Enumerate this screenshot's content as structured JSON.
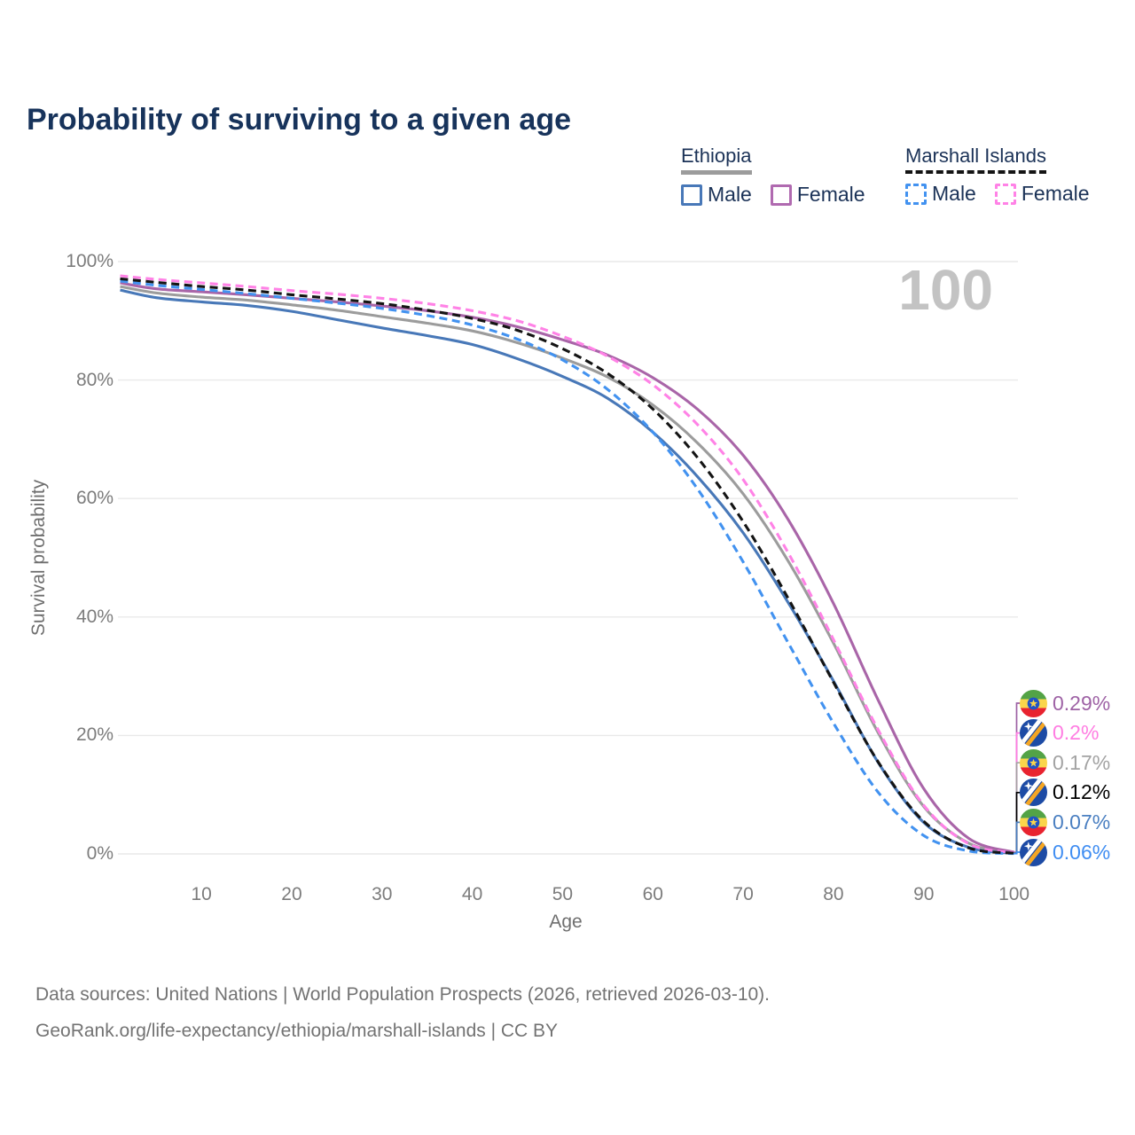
{
  "title": "Probability of surviving to a given age",
  "watermark": "100",
  "legend": {
    "groups": [
      {
        "label": "Ethiopia",
        "underline": "solid",
        "underline_color": "#9c9c9c",
        "items": [
          {
            "label": "Male",
            "color": "#4878b8",
            "dashed": false
          },
          {
            "label": "Female",
            "color": "#b06ab0",
            "dashed": false
          }
        ]
      },
      {
        "label": "Marshall Islands",
        "underline": "dashed",
        "underline_color": "#141414",
        "items": [
          {
            "label": "Male",
            "color": "#4292f0",
            "dashed": true
          },
          {
            "label": "Female",
            "color": "#ff82e6",
            "dashed": true
          }
        ]
      }
    ]
  },
  "chart_data": {
    "type": "line",
    "title": "Probability of surviving to a given age",
    "xlabel": "Age",
    "ylabel": "Survival probability",
    "xlim": [
      1,
      100
    ],
    "ylim": [
      0,
      100
    ],
    "grid": "horizontal-only",
    "legend_position": "top-right",
    "hovered_age": "100",
    "x_ticks": [
      10,
      20,
      30,
      40,
      50,
      60,
      70,
      80,
      90,
      100
    ],
    "y_ticks": [
      {
        "pct": 0,
        "label": "0%"
      },
      {
        "pct": 20,
        "label": "20%"
      },
      {
        "pct": 40,
        "label": "40%"
      },
      {
        "pct": 60,
        "label": "60%"
      },
      {
        "pct": 80,
        "label": "80%"
      },
      {
        "pct": 100,
        "label": "100%"
      }
    ],
    "ages": [
      1,
      5,
      10,
      15,
      20,
      25,
      30,
      35,
      40,
      45,
      50,
      55,
      60,
      65,
      70,
      75,
      80,
      85,
      90,
      95,
      100
    ],
    "series": [
      {
        "name": "Ethiopia Female",
        "country": "Ethiopia",
        "sex": "Female",
        "color": "#a965a8",
        "dashed": false,
        "values": [
          96.4,
          95.4,
          94.9,
          94.4,
          93.8,
          93.2,
          92.5,
          91.7,
          90.6,
          89.0,
          86.8,
          84.2,
          80.4,
          75.0,
          67.3,
          56.4,
          42.3,
          25.8,
          11.0,
          2.6,
          0.29
        ]
      },
      {
        "name": "Marshall Islands Female",
        "country": "Marshall Islands",
        "sex": "Female",
        "color": "#ff82e6",
        "dashed": true,
        "values": [
          97.6,
          97.0,
          96.4,
          95.8,
          95.1,
          94.5,
          93.8,
          92.9,
          91.7,
          90.0,
          87.4,
          84.0,
          79.2,
          72.4,
          63.2,
          50.8,
          36.2,
          20.8,
          8.2,
          1.7,
          0.2
        ]
      },
      {
        "name": "Ethiopia Both sexes",
        "country": "Ethiopia",
        "sex": "Both",
        "color": "#9c9c9c",
        "dashed": false,
        "values": [
          95.8,
          94.7,
          94.0,
          93.5,
          92.7,
          91.8,
          90.7,
          89.6,
          88.3,
          86.3,
          83.7,
          80.5,
          75.8,
          69.3,
          60.8,
          49.4,
          35.6,
          20.3,
          8.0,
          1.8,
          0.17
        ]
      },
      {
        "name": "Marshall Islands Both sexes",
        "country": "Marshall Islands",
        "sex": "Both",
        "color": "#141414",
        "dashed": true,
        "values": [
          97.1,
          96.5,
          95.8,
          95.2,
          94.4,
          93.7,
          92.9,
          91.8,
          90.4,
          88.4,
          85.3,
          81.1,
          75.1,
          66.8,
          56.1,
          43.1,
          29.0,
          15.4,
          5.5,
          1.0,
          0.12
        ]
      },
      {
        "name": "Ethiopia Male",
        "country": "Ethiopia",
        "sex": "Male",
        "color": "#4878b8",
        "dashed": false,
        "values": [
          95.2,
          93.9,
          93.2,
          92.6,
          91.6,
          90.2,
          88.8,
          87.5,
          86.0,
          83.6,
          80.6,
          76.9,
          71.2,
          63.6,
          54.2,
          42.4,
          29.2,
          15.3,
          5.3,
          1.1,
          0.07
        ]
      },
      {
        "name": "Marshall Islands Male",
        "country": "Marshall Islands",
        "sex": "Male",
        "color": "#4292f0",
        "dashed": true,
        "values": [
          96.7,
          96.0,
          95.3,
          94.6,
          93.8,
          93.0,
          92.1,
          90.9,
          89.3,
          86.9,
          83.4,
          78.4,
          71.2,
          61.5,
          49.3,
          35.6,
          22.1,
          10.3,
          3.1,
          0.5,
          0.06
        ]
      }
    ],
    "end_labels": [
      {
        "value": "0.29%",
        "flag": "ethiopia",
        "series_index": 0,
        "color": "#9e62a5"
      },
      {
        "value": "0.2%",
        "flag": "marshall-islands",
        "series_index": 1,
        "color": "#ff7de2"
      },
      {
        "value": "0.17%",
        "flag": "ethiopia",
        "series_index": 2,
        "color": "#a3a3a3"
      },
      {
        "value": "0.12%",
        "flag": "marshall-islands",
        "series_index": 3,
        "color": "#000000"
      },
      {
        "value": "0.07%",
        "flag": "ethiopia",
        "series_index": 4,
        "color": "#4a7fc1"
      },
      {
        "value": "0.06%",
        "flag": "marshall-islands",
        "series_index": 5,
        "color": "#3f8df2"
      }
    ]
  },
  "source": {
    "line1": "Data sources: United Nations | World Population Prospects (2026, retrieved 2026-03-10).",
    "line2": "GeoRank.org/life-expectancy/ethiopia/marshall-islands | CC BY"
  }
}
